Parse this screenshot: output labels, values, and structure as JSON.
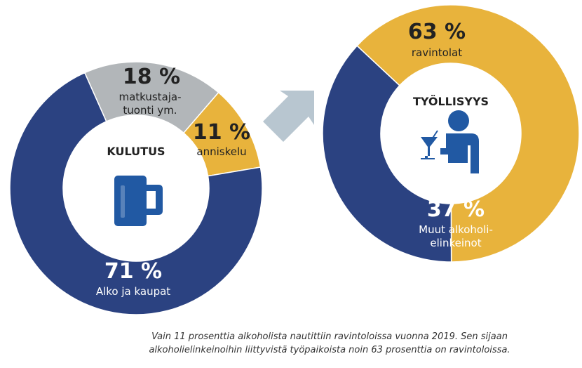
{
  "colors": {
    "navy": "#2b4281",
    "gold": "#e8b33c",
    "gray": "#b2b6b9",
    "arrow": "#b8c6d0",
    "icon": "#2159a3",
    "text": "#222222",
    "onDark": "#ffffff"
  },
  "chart_data": [
    {
      "type": "pie",
      "variant": "donut",
      "title": "KULUTUS",
      "slices": [
        {
          "name": "matkustaja-tuonti ym.",
          "value": 18,
          "color": "gray",
          "label_pct": "18 %",
          "label_lines": [
            "matkustaja-",
            "tuonti ym."
          ]
        },
        {
          "name": "anniskelu",
          "value": 11,
          "color": "gold",
          "label_pct": "11 %",
          "label_lines": [
            "anniskelu"
          ]
        },
        {
          "name": "Alko ja kaupat",
          "value": 71,
          "color": "navy",
          "label_pct": "71 %",
          "label_lines": [
            "Alko ja kaupat"
          ]
        }
      ]
    },
    {
      "type": "pie",
      "variant": "donut",
      "title": "TYÖLLISYYS",
      "slices": [
        {
          "name": "ravintolat",
          "value": 63,
          "color": "gold",
          "label_pct": "63 %",
          "label_lines": [
            "ravintolat"
          ]
        },
        {
          "name": "Muut alkoholi-elinkeinot",
          "value": 37,
          "color": "navy",
          "label_pct": "37 %",
          "label_lines": [
            "Muut alkoholi-",
            "elinkeinot"
          ]
        }
      ]
    }
  ],
  "caption": {
    "line1": "Vain 11 prosenttia alkoholista nautittiin ravintoloissa vuonna 2019. Sen sijaan",
    "line2": "alkoholielinkeinoihin liittyvistä työpaikoista noin 63 prosenttia on ravintoloissa."
  },
  "icons": {
    "left": "beer-mug-icon",
    "right": "bartender-icon",
    "arrow": "right-arrow-icon"
  }
}
